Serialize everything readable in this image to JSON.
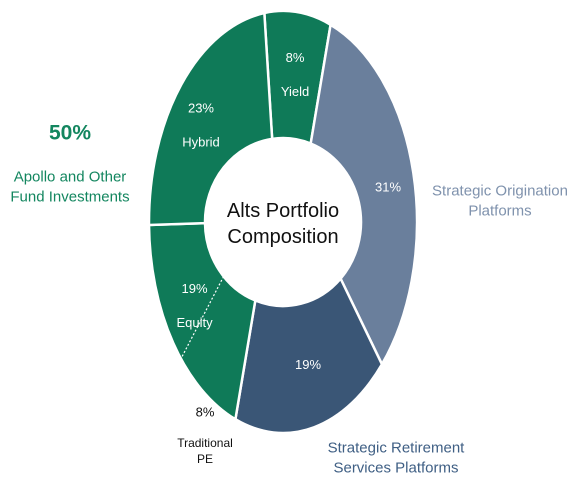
{
  "chart_data": {
    "type": "donut",
    "center_label": "Alts Portfolio Composition",
    "categories": [
      "Yield",
      "Strategic Origination Platforms",
      "Strategic Retirement Services Platforms",
      "Equity",
      "Hybrid"
    ],
    "values": [
      8,
      31,
      19,
      19,
      23
    ],
    "value_labels": [
      "8%",
      "31%",
      "19%",
      "19%",
      "23%"
    ],
    "colors": [
      "#0f7a58",
      "#6a7f9c",
      "#3a5676",
      "#0f7a58",
      "#0f7a58"
    ],
    "sub_segments": [
      {
        "name": "Traditional PE",
        "parent": 3,
        "value": 8,
        "value_label": "8%"
      }
    ],
    "groups": [
      {
        "name": "Apollo and Other Fund Investments",
        "value": 50,
        "value_label": "50%",
        "color": "#13865f"
      }
    ]
  }
}
